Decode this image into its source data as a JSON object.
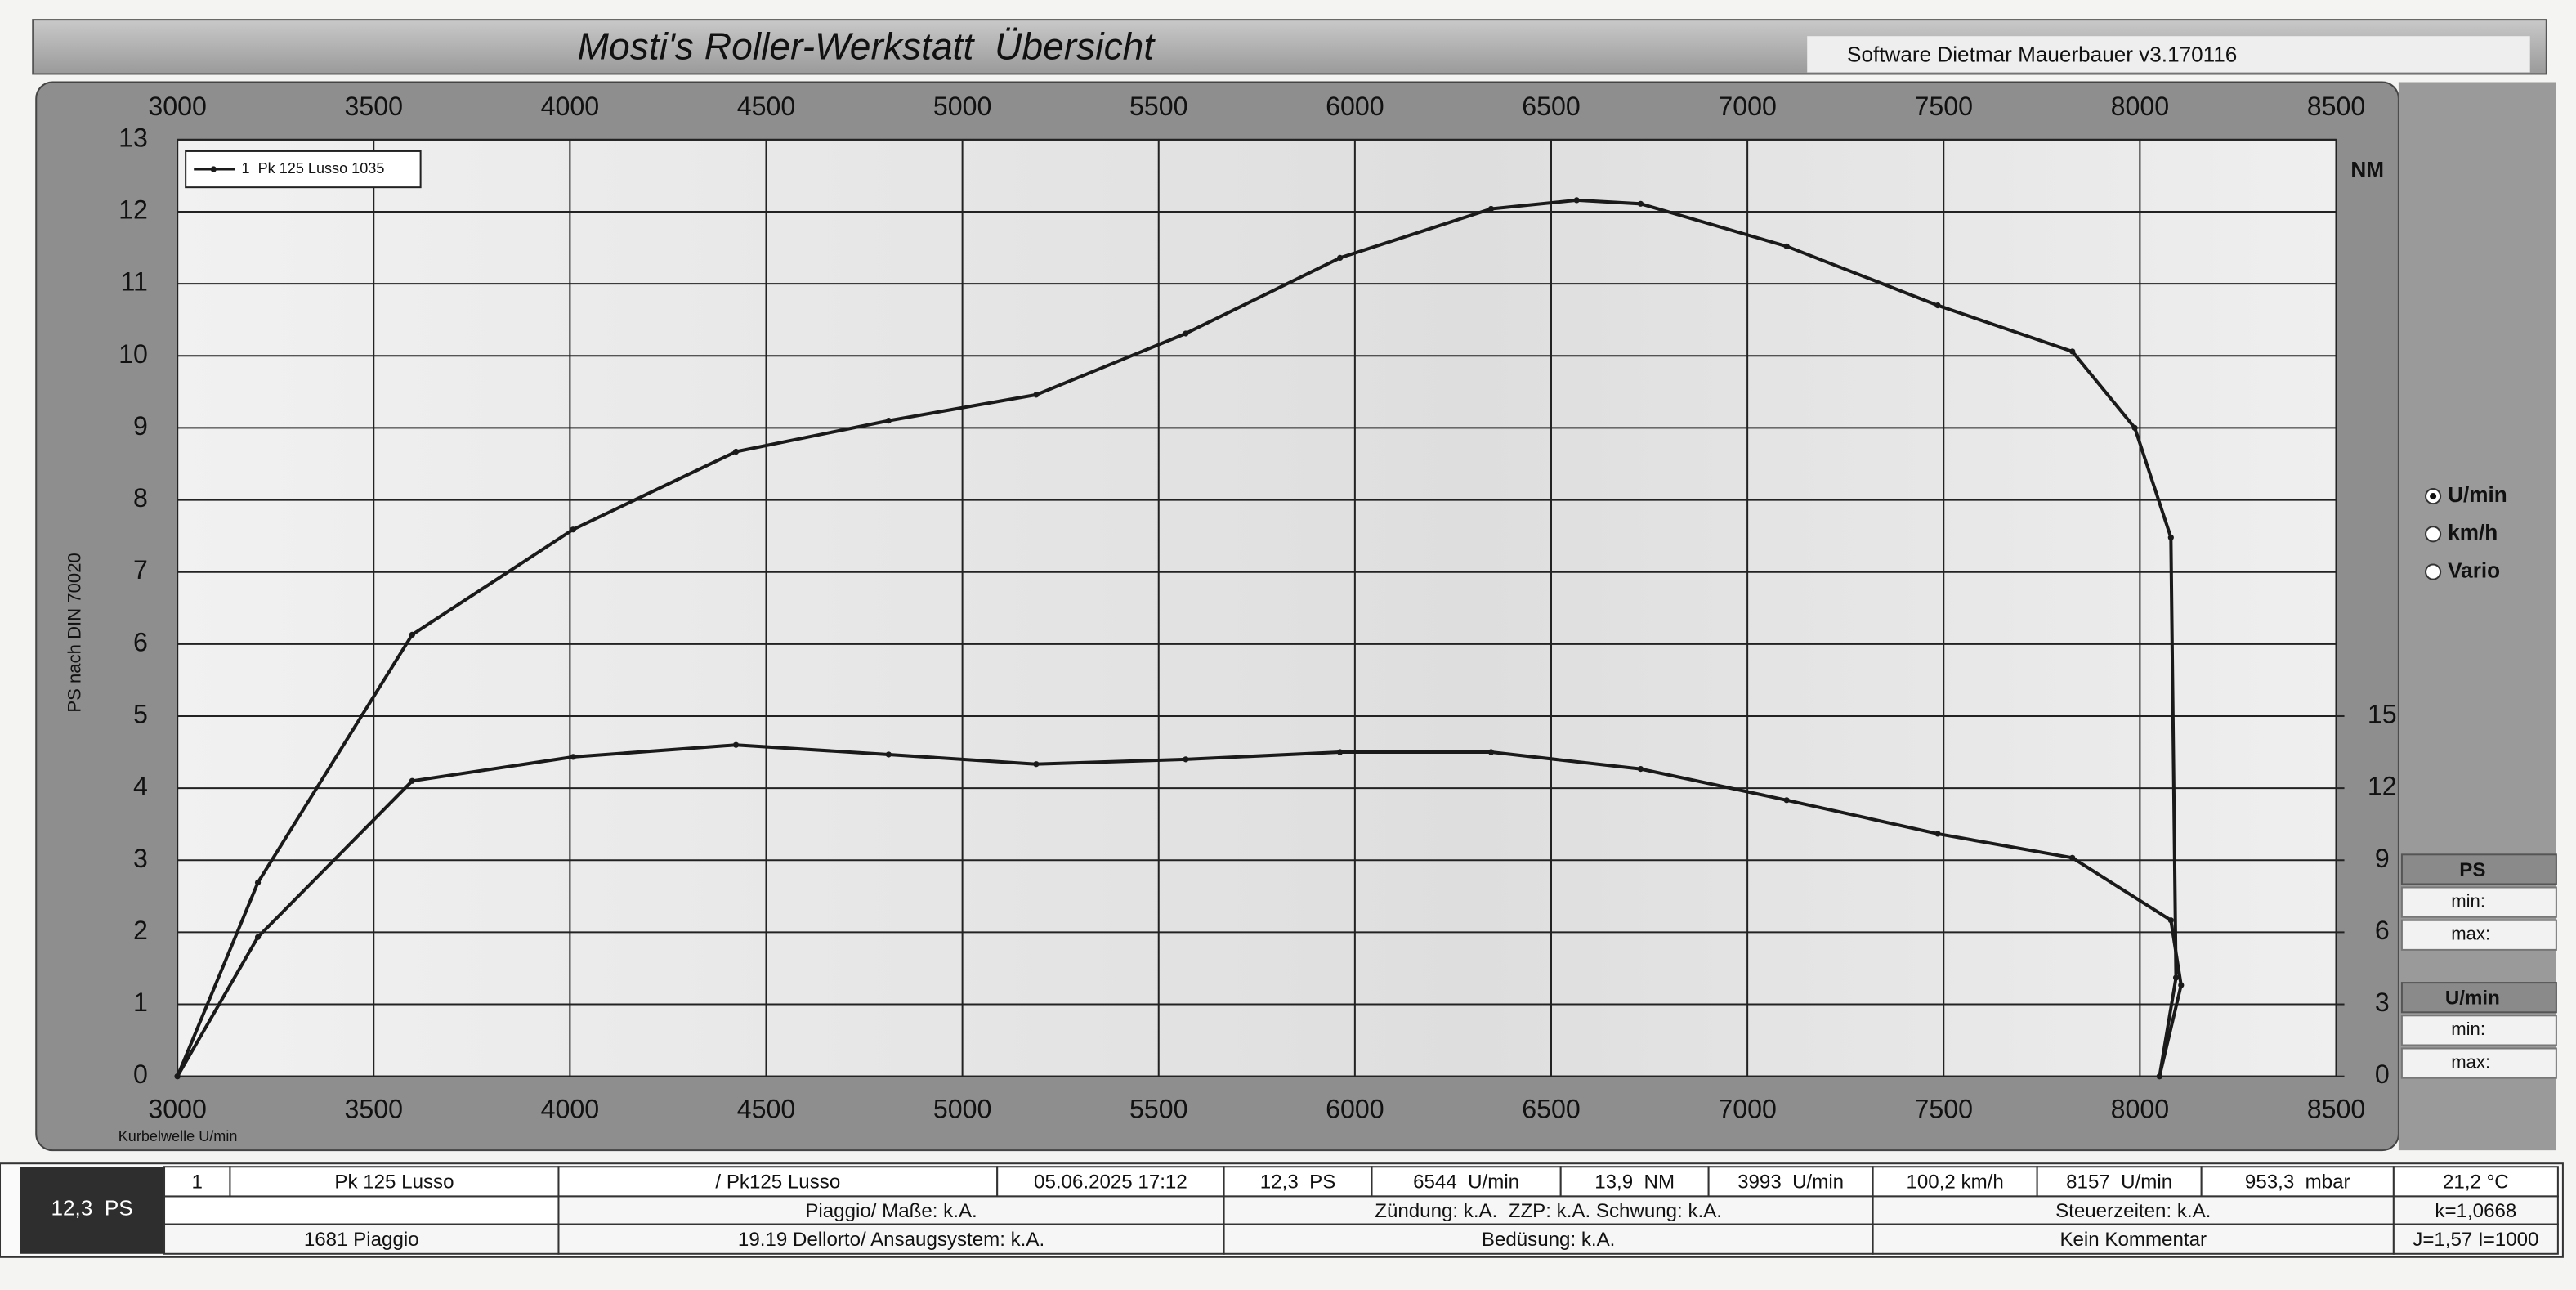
{
  "header": {
    "title": "Mosti's Roller-Werkstatt  Übersicht",
    "software": "Software Dietmar Mauerbauer v3.170116"
  },
  "chart_data": {
    "type": "line",
    "y_label": "PS nach DIN 70020",
    "x_label": "Kurbelwelle U/min",
    "y2_label": "NM",
    "xlim": [
      3000,
      8500
    ],
    "xticks": [
      3000,
      3500,
      4000,
      4500,
      5000,
      5500,
      6000,
      6500,
      7000,
      7500,
      8000,
      8500
    ],
    "ylim": [
      0,
      13
    ],
    "yticks": [
      0,
      1,
      2,
      3,
      4,
      5,
      6,
      7,
      8,
      9,
      10,
      11,
      12,
      13
    ],
    "y2lim": [
      0,
      39
    ],
    "y2ticks": [
      0,
      3,
      6,
      9,
      12,
      15
    ],
    "grid": true,
    "legend": "upper left",
    "series": [
      {
        "name": "1  Pk 125 Lusso 1035",
        "color": "#1a1a1a",
        "x": [
          3000,
          3205,
          3598,
          4008,
          4423,
          4812,
          5188,
          5569,
          5962,
          6347,
          6565,
          6728,
          7100,
          7485,
          7828,
          7987,
          8079,
          8092,
          8050
        ],
        "values": [
          0,
          2.69,
          6.13,
          7.59,
          8.67,
          9.1,
          9.46,
          10.31,
          11.36,
          12.04,
          12.16,
          12.11,
          11.52,
          10.7,
          10.06,
          9.0,
          7.48,
          1.37,
          0
        ]
      },
      {
        "color": "#1a1a1a",
        "axis": "y2",
        "x": [
          3000,
          3205,
          3598,
          4008,
          4423,
          4812,
          5188,
          5569,
          5962,
          6347,
          6728,
          7100,
          7485,
          7828,
          8079,
          8105,
          8050
        ],
        "values": [
          0,
          5.8,
          12.3,
          13.3,
          13.8,
          13.4,
          13.0,
          13.2,
          13.5,
          13.5,
          12.8,
          11.5,
          10.1,
          9.1,
          6.5,
          3.8,
          0
        ]
      }
    ]
  },
  "side_panel": {
    "options": [
      "U/min",
      "km/h",
      "Vario"
    ],
    "groups": [
      {
        "title": "PS",
        "rows": [
          "min:",
          "max:"
        ]
      },
      {
        "title": "U/min",
        "rows": [
          "min:",
          "max:"
        ]
      }
    ]
  },
  "summary": "12,3  PS",
  "table": {
    "rows": [
      [
        "1",
        "Pk 125 Lusso",
        "/ Pk125 Lusso",
        "05.06.2025 17:12",
        "12,3  PS",
        "6544  U/min",
        "13,9  NM",
        "3993  U/min",
        "100,2 km/h",
        "8157  U/min",
        "953,3  mbar",
        "21,2 °C"
      ],
      [
        "Piaggio/ Maße: k.A.",
        "Zündung: k.A.  ZZP: k.A. Schwung: k.A.",
        "Steuerzeiten: k.A.",
        "k=1,0668"
      ],
      [
        "1681 Piaggio",
        "19.19 Dellorto/ Ansaugsystem: k.A.",
        "Bedüsung: k.A.",
        "Kein Kommentar",
        "J=1,57 I=1000"
      ]
    ]
  }
}
